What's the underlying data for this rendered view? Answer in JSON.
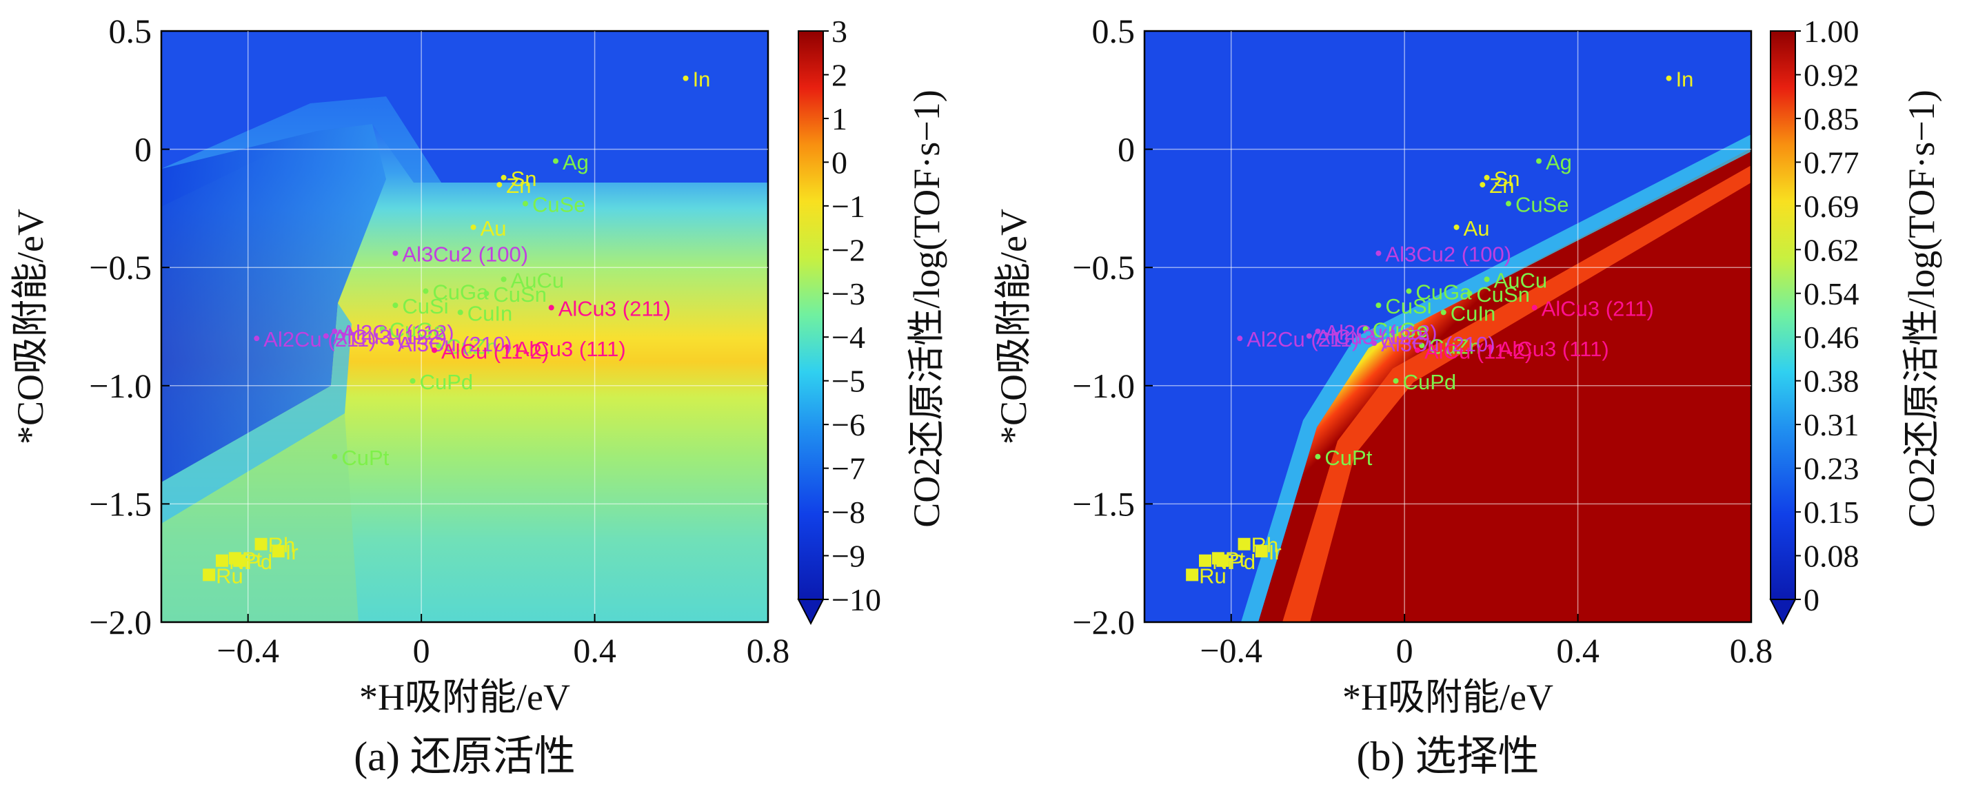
{
  "chart_data": [
    {
      "type": "heatmap",
      "caption": "(a) 还原活性",
      "xlabel": "*H吸附能/eV",
      "ylabel": "*CO吸附能/eV",
      "xlim": [
        -0.6,
        0.8
      ],
      "ylim": [
        -2.0,
        0.5
      ],
      "xticks": [
        "−0.4",
        "0",
        "0.4",
        "0.8"
      ],
      "yticks": [
        "0.5",
        "0",
        "−0.5",
        "−1.0",
        "−1.5",
        "−2.0"
      ],
      "colorbar": {
        "label": "CO2还原活性/log(TOF·s−1)",
        "min": -10,
        "max": 3,
        "ticks": [
          "3",
          "2",
          "1",
          "0",
          "−1",
          "−2",
          "−3",
          "−4",
          "−5",
          "−6",
          "−7",
          "−8",
          "−9",
          "−10"
        ]
      },
      "points": [
        {
          "label": "In",
          "x": 0.61,
          "y": 0.3,
          "color": "#f0f020"
        },
        {
          "label": "Ag",
          "x": 0.31,
          "y": -0.05,
          "color": "#7ef04a"
        },
        {
          "label": "Sn",
          "x": 0.19,
          "y": -0.12,
          "color": "#e8f020"
        },
        {
          "label": "Zn",
          "x": 0.18,
          "y": -0.15,
          "color": "#e8f020"
        },
        {
          "label": "Au",
          "x": 0.12,
          "y": -0.33,
          "color": "#e8f020"
        },
        {
          "label": "CuSe",
          "x": 0.24,
          "y": -0.23,
          "color": "#7ef04a"
        },
        {
          "label": "Al3Cu2 (100)",
          "x": -0.06,
          "y": -0.44,
          "color": "#c040e0"
        },
        {
          "label": "AuCu",
          "x": 0.19,
          "y": -0.55,
          "color": "#7ef04a"
        },
        {
          "label": "CuGa",
          "x": 0.01,
          "y": -0.6,
          "color": "#7ef04a"
        },
        {
          "label": "CuSn",
          "x": 0.15,
          "y": -0.61,
          "color": "#7ef04a"
        },
        {
          "label": "CuSi",
          "x": -0.06,
          "y": -0.66,
          "color": "#7ef04a"
        },
        {
          "label": "CuIn",
          "x": 0.09,
          "y": -0.69,
          "color": "#7ef04a"
        },
        {
          "label": "Al2Cu (112)",
          "x": -0.2,
          "y": -0.77,
          "color": "#c040e0"
        },
        {
          "label": "AlCu3 (211)",
          "x": 0.3,
          "y": -0.67,
          "color": "#ff1090"
        },
        {
          "label": "Al2Cu (211)",
          "x": -0.38,
          "y": -0.8,
          "color": "#c040e0"
        },
        {
          "label": "CuGe",
          "x": -0.09,
          "y": -0.76,
          "color": "#7ef04a"
        },
        {
          "label": "CuZn",
          "x": 0.04,
          "y": -0.83,
          "color": "#7ef04a"
        },
        {
          "label": "AlCu3 (111)",
          "x": 0.2,
          "y": -0.84,
          "color": "#ff1090"
        },
        {
          "label": "AlCu3 (122)",
          "x": -0.22,
          "y": -0.79,
          "color": "#c040e0"
        },
        {
          "label": "Al3Cu (210)",
          "x": -0.07,
          "y": -0.82,
          "color": "#c040e0"
        },
        {
          "label": "AlCu (11-2)",
          "x": 0.03,
          "y": -0.85,
          "color": "#ff1090"
        },
        {
          "label": "CuPd",
          "x": -0.02,
          "y": -0.98,
          "color": "#7ef04a"
        },
        {
          "label": "CuPt",
          "x": -0.2,
          "y": -1.3,
          "color": "#7ef04a"
        },
        {
          "label": "Rh",
          "x": -0.37,
          "y": -1.67,
          "color": "#e8f020"
        },
        {
          "label": "Pt",
          "x": -0.43,
          "y": -1.73,
          "color": "#e8f020"
        },
        {
          "label": "Ni",
          "x": -0.46,
          "y": -1.74,
          "color": "#e8f020"
        },
        {
          "label": "Ir",
          "x": -0.33,
          "y": -1.7,
          "color": "#e8f020"
        },
        {
          "label": "Pd",
          "x": -0.42,
          "y": -1.74,
          "color": "#e8f020"
        },
        {
          "label": "Ru",
          "x": -0.49,
          "y": -1.8,
          "color": "#e8f020"
        }
      ]
    },
    {
      "type": "heatmap",
      "caption": "(b) 选择性",
      "xlabel": "*H吸附能/eV",
      "ylabel": "*CO吸附能/eV",
      "xlim": [
        -0.6,
        0.8
      ],
      "ylim": [
        -2.0,
        0.5
      ],
      "xticks": [
        "−0.4",
        "0",
        "0.4",
        "0.8"
      ],
      "yticks": [
        "0.5",
        "0",
        "−0.5",
        "−1.0",
        "−1.5",
        "−2.0"
      ],
      "colorbar": {
        "label": "CO2还原活性/log(TOF·s−1)",
        "min": 0,
        "max": 1,
        "ticks": [
          "1.00",
          "0.92",
          "0.85",
          "0.77",
          "0.69",
          "0.62",
          "0.54",
          "0.46",
          "0.38",
          "0.31",
          "0.23",
          "0.15",
          "0.08",
          "0"
        ]
      },
      "points": "same as (a)"
    }
  ]
}
